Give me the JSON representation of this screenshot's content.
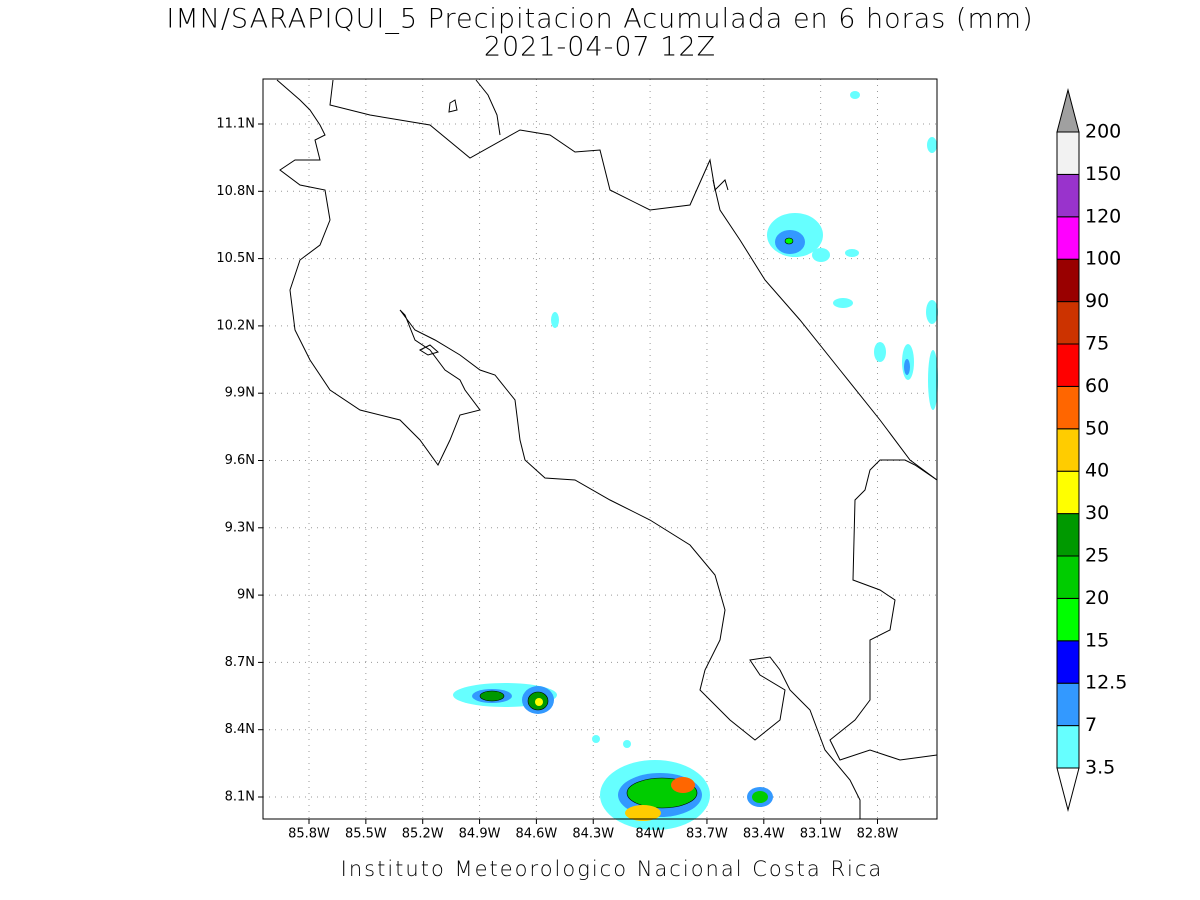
{
  "title": "IMN/SARAPIQUI_5 Precipitacion Acumulada en 6 horas (mm)",
  "subtitle": "2021-04-07 12Z",
  "footer": "Instituto Meteorologico Nacional Costa Rica",
  "map": {
    "lon_ticks": [
      "85.8W",
      "85.5W",
      "85.2W",
      "84.9W",
      "84.6W",
      "84.3W",
      "84W",
      "83.7W",
      "83.4W",
      "83.1W",
      "82.8W"
    ],
    "lat_ticks": [
      "11.1N",
      "10.8N",
      "10.5N",
      "10.2N",
      "9.9N",
      "9.6N",
      "9.3N",
      "9N",
      "8.7N",
      "8.4N",
      "8.1N"
    ]
  },
  "colorbar": {
    "levels": [
      3.5,
      7,
      12.5,
      15,
      20,
      25,
      30,
      40,
      50,
      60,
      75,
      90,
      100,
      120,
      150,
      200
    ],
    "colors": [
      "#ffffff",
      "#66ffff",
      "#3399ff",
      "#0000ff",
      "#00ff00",
      "#00cc00",
      "#009900",
      "#ffff00",
      "#ffcc00",
      "#ff6600",
      "#ff0000",
      "#cc3300",
      "#990000",
      "#ff00ff",
      "#9933cc",
      "#f2f2f2",
      "#a0a0a0"
    ]
  }
}
